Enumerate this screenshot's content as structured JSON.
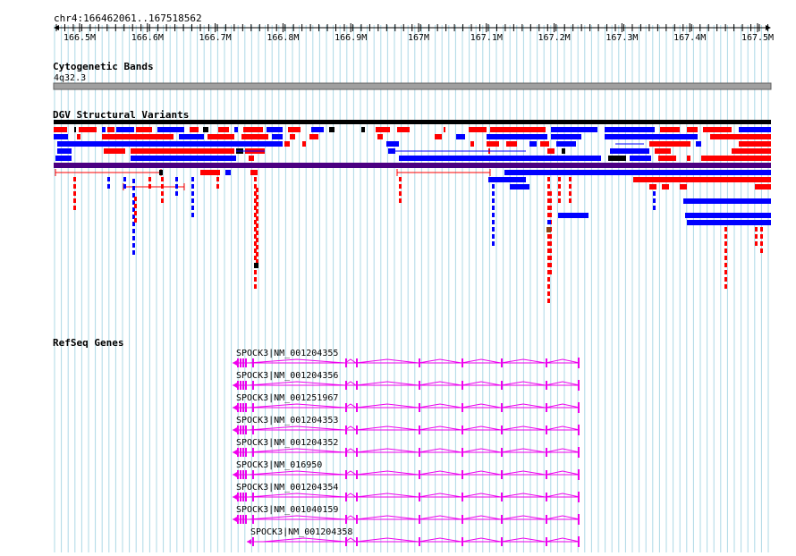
{
  "genome_browser": {
    "locus": "chr4:166462061..167518562",
    "ruler": {
      "ticks": [
        "166.5M",
        "166.6M",
        "166.7M",
        "166.8M",
        "166.9M",
        "167M",
        "167.1M",
        "167.2M",
        "167.3M",
        "167.4M",
        "167.5M"
      ]
    },
    "tracks": {
      "cytoband": {
        "title": "Cytogenetic Bands",
        "band_label": "4q32.3"
      },
      "dgv": {
        "title": "DGV Structural Variants"
      },
      "refseq": {
        "title": "RefSeq Genes"
      }
    },
    "genes": [
      {
        "label": "SPOCK3|NM_001204355"
      },
      {
        "label": "SPOCK3|NM_001204356"
      },
      {
        "label": "SPOCK3|NM_001251967"
      },
      {
        "label": "SPOCK3|NM_001204353"
      },
      {
        "label": "SPOCK3|NM_001204352"
      },
      {
        "label": "SPOCK3|NM_016950"
      },
      {
        "label": "SPOCK3|NM_001204354"
      },
      {
        "label": "SPOCK3|NM_001040159"
      },
      {
        "label": "SPOCK3|NM_001204358"
      }
    ],
    "colors": {
      "grid": "#add8e6",
      "gain": "#ff0000",
      "loss": "#0000ff",
      "complex": "#000000",
      "inversion": "#8b4513",
      "merged_bar": "#4b0082",
      "gene": "#ee00ee",
      "cytoband": "#a0a0a0",
      "text": "#000000"
    }
  }
}
